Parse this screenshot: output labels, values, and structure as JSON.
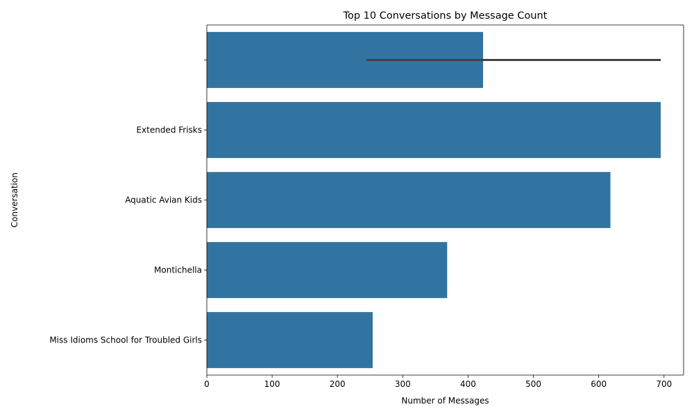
{
  "chart_data": {
    "type": "bar",
    "orientation": "horizontal",
    "title": "Top 10 Conversations by Message Count",
    "xlabel": "Number of Messages",
    "ylabel": "Conversation",
    "xlim": [
      0,
      730
    ],
    "xticks": [
      0,
      100,
      200,
      300,
      400,
      500,
      600,
      700
    ],
    "categories": [
      "",
      "Extended Frisks",
      "Aquatic Avian Kids",
      "Montichella",
      "Miss Idioms School for Troubled Girls"
    ],
    "values": [
      423,
      695,
      618,
      368,
      254
    ],
    "error_bars": [
      {
        "category_index": 0,
        "low": 244,
        "high": 695
      }
    ],
    "bar_color": "#3274a1",
    "error_color": "#424242",
    "grid": false,
    "legend": "none"
  }
}
